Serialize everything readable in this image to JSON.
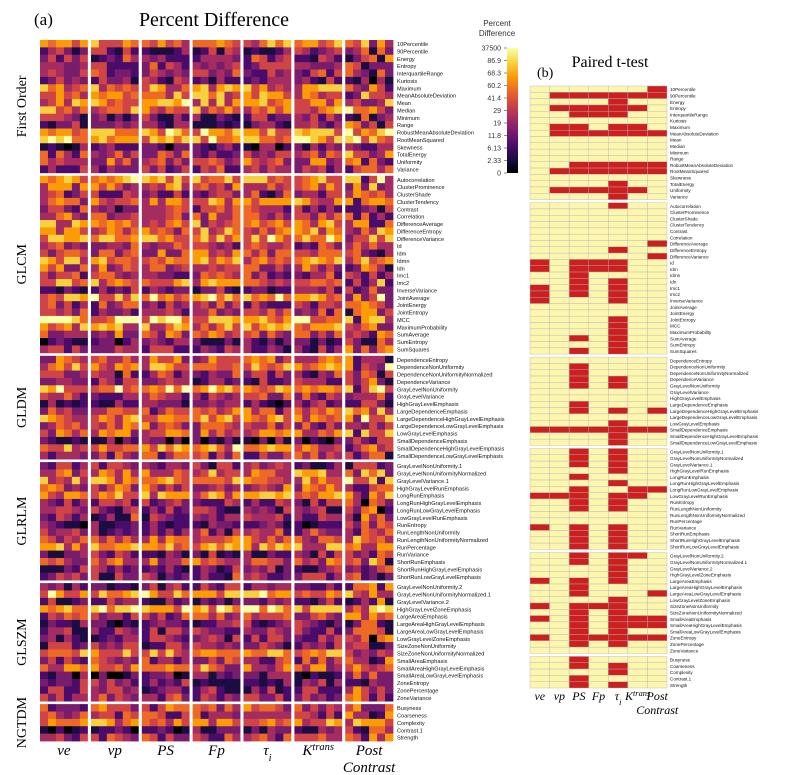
{
  "panel_a": {
    "label": "(a)",
    "title": "Percent Difference"
  },
  "panel_b": {
    "label": "(b)",
    "title": "Paired t-test"
  },
  "colorbar": {
    "title_line1": "Percent",
    "title_line2": "Difference",
    "ticks": [
      "37500",
      "86.9",
      "68.3",
      "60.2",
      "41.4",
      "29",
      "19",
      "11.8",
      "6.13",
      "2.33",
      "0"
    ]
  },
  "columns": [
    {
      "main": "ve",
      "sub": "",
      "sup": "",
      "extra": "",
      "italic": true
    },
    {
      "main": "vp",
      "sub": "",
      "sup": "",
      "extra": "",
      "italic": true
    },
    {
      "main": "PS",
      "sub": "",
      "sup": "",
      "extra": "",
      "italic": true
    },
    {
      "main": "Fp",
      "sub": "",
      "sup": "",
      "extra": "",
      "italic": true
    },
    {
      "main": "τ",
      "sub": "i",
      "sup": "",
      "extra": "",
      "italic": true
    },
    {
      "main": "K",
      "sub": "",
      "sup": "trans",
      "extra": "",
      "italic": true
    },
    {
      "main": "Post",
      "sub": "",
      "sup": "",
      "extra": "Contrast",
      "italic": true
    }
  ],
  "colors": {
    "significant": "#cc1f1f",
    "not_significant": "#fdf6ae",
    "grid_line": "#b5b5b5",
    "colormap": [
      "#000004",
      "#1b0c41",
      "#4a0c6b",
      "#781c6d",
      "#a52c60",
      "#cf4446",
      "#ed6925",
      "#fb9b06",
      "#f7d13d",
      "#fcffa4"
    ]
  },
  "chart_data": [
    {
      "type": "heatmap",
      "title": "Percent Difference",
      "colorbar_label": "Percent Difference",
      "colorbar_ticks": [
        37500,
        86.9,
        68.3,
        60.2,
        41.4,
        29,
        19,
        11.8,
        6.13,
        2.33,
        0
      ],
      "columns": [
        "ve",
        "vp",
        "PS",
        "Fp",
        "τi",
        "Ktrans",
        "Post Contrast"
      ],
      "groups": [
        {
          "name": "First Order",
          "features": [
            "10Percentile",
            "90Percentile",
            "Energy",
            "Entropy",
            "InterquartileRange",
            "Kurtosis",
            "Maximum",
            "MeanAbsoluteDeviation",
            "Mean",
            "Median",
            "Minimum",
            "Range",
            "RobustMeanAbsoluteDeviation",
            "RootMeanSquared",
            "Skewness",
            "TotalEnergy",
            "Uniformity",
            "Variance"
          ]
        },
        {
          "name": "GLCM",
          "features": [
            "Autocorrelation",
            "ClusterProminence",
            "ClusterShade",
            "ClusterTendency",
            "Contrast",
            "Correlation",
            "DifferenceAverage",
            "DifferenceEntropy",
            "DifferenceVariance",
            "Id",
            "Idm",
            "Idmn",
            "Idn",
            "Imc1",
            "Imc2",
            "InverseVariance",
            "JointAverage",
            "JointEnergy",
            "JointEntropy",
            "MCC",
            "MaximumProbability",
            "SumAverage",
            "SumEntropy",
            "SumSquares"
          ]
        },
        {
          "name": "GLDM",
          "features": [
            "DependenceEntropy",
            "DependenceNonUniformity",
            "DependenceNonUniformityNormalized",
            "DependenceVariance",
            "GrayLevelNonUniformity",
            "GrayLevelVariance",
            "HighGrayLevelEmphasis",
            "LargeDependenceEmphasis",
            "LargeDependenceHighGrayLevelEmphasis",
            "LargeDependenceLowGrayLevelEmphasis",
            "LowGrayLevelEmphasis",
            "SmallDependenceEmphasis",
            "SmallDependenceHighGrayLevelEmphasis",
            "SmallDependenceLowGrayLevelEmphasis"
          ]
        },
        {
          "name": "GLRLM",
          "features": [
            "GrayLevelNonUniformity.1",
            "GrayLevelNonUniformityNormalized",
            "GrayLevelVariance.1",
            "HighGrayLevelRunEmphasis",
            "LongRunEmphasis",
            "LongRunHighGrayLevelEmphasis",
            "LongRunLowGrayLevelEmphasis",
            "LowGrayLevelRunEmphasis",
            "RunEntropy",
            "RunLengthNonUniformity",
            "RunLengthNonUniformityNormalized",
            "RunPercentage",
            "RunVariance",
            "ShortRunEmphasis",
            "ShortRunHighGrayLevelEmphasis",
            "ShortRunLowGrayLevelEmphasis"
          ]
        },
        {
          "name": "GLSZM",
          "features": [
            "GrayLevelNonUniformity.2",
            "GrayLevelNonUniformityNormalized.1",
            "GrayLevelVariance.2",
            "HighGrayLevelZoneEmphasis",
            "LargeAreaEmphasis",
            "LargeAreaHighGrayLevelEmphasis",
            "LargeAreaLowGrayLevelEmphasis",
            "LowGrayLevelZoneEmphasis",
            "SizeZoneNonUniformity",
            "SizeZoneNonUniformityNormalized",
            "SmallAreaEmphasis",
            "SmallAreaHighGrayLevelEmphasis",
            "SmallAreaLowGrayLevelEmphasis",
            "ZoneEntropy",
            "ZonePercentage",
            "ZoneVariance"
          ]
        },
        {
          "name": "NGTDM",
          "features": [
            "Busyness",
            "Coarseness",
            "Complexity",
            "Contrast.1",
            "Strength"
          ]
        }
      ]
    },
    {
      "type": "heatmap",
      "title": "Paired t-test",
      "columns": [
        "ve",
        "vp",
        "PS",
        "Fp",
        "τi",
        "Ktrans",
        "Post Contrast"
      ],
      "significance": {
        "First Order": [
          [
            0,
            0,
            0,
            0,
            0,
            0,
            1
          ],
          [
            0,
            1,
            1,
            1,
            1,
            1,
            1
          ],
          [
            0,
            0,
            0,
            0,
            1,
            0,
            0
          ],
          [
            0,
            1,
            1,
            1,
            1,
            1,
            0
          ],
          [
            0,
            0,
            1,
            1,
            1,
            0,
            0
          ],
          [
            0,
            0,
            0,
            0,
            0,
            0,
            0
          ],
          [
            0,
            1,
            1,
            0,
            1,
            1,
            0
          ],
          [
            0,
            1,
            1,
            1,
            1,
            1,
            1
          ],
          [
            0,
            0,
            0,
            0,
            0,
            0,
            0
          ],
          [
            0,
            0,
            0,
            0,
            0,
            0,
            0
          ],
          [
            0,
            0,
            0,
            0,
            0,
            0,
            0
          ],
          [
            0,
            0,
            0,
            0,
            0,
            0,
            0
          ],
          [
            0,
            0,
            1,
            1,
            1,
            1,
            1
          ],
          [
            0,
            1,
            1,
            1,
            1,
            1,
            1
          ],
          [
            0,
            0,
            0,
            0,
            0,
            0,
            0
          ],
          [
            0,
            0,
            0,
            0,
            1,
            0,
            0
          ],
          [
            0,
            1,
            1,
            1,
            1,
            1,
            0
          ],
          [
            0,
            0,
            0,
            0,
            1,
            0,
            0
          ]
        ],
        "GLCM": [
          [
            0,
            0,
            0,
            0,
            1,
            0,
            0
          ],
          [
            0,
            0,
            0,
            0,
            0,
            0,
            0
          ],
          [
            0,
            0,
            0,
            0,
            0,
            0,
            0
          ],
          [
            0,
            0,
            0,
            0,
            0,
            0,
            0
          ],
          [
            0,
            0,
            0,
            0,
            0,
            0,
            0
          ],
          [
            0,
            0,
            0,
            0,
            0,
            0,
            0
          ],
          [
            0,
            0,
            0,
            0,
            0,
            0,
            1
          ],
          [
            0,
            0,
            0,
            0,
            1,
            0,
            0
          ],
          [
            0,
            0,
            0,
            0,
            0,
            0,
            1
          ],
          [
            1,
            0,
            1,
            1,
            1,
            0,
            0
          ],
          [
            1,
            0,
            1,
            1,
            1,
            0,
            0
          ],
          [
            0,
            0,
            1,
            0,
            0,
            0,
            0
          ],
          [
            0,
            0,
            1,
            0,
            1,
            0,
            0
          ],
          [
            1,
            0,
            1,
            0,
            1,
            0,
            0
          ],
          [
            1,
            0,
            1,
            0,
            1,
            0,
            0
          ],
          [
            1,
            0,
            0,
            0,
            1,
            0,
            0
          ],
          [
            0,
            0,
            0,
            0,
            0,
            0,
            0
          ],
          [
            0,
            0,
            0,
            0,
            0,
            0,
            0
          ],
          [
            0,
            0,
            0,
            0,
            1,
            0,
            0
          ],
          [
            0,
            0,
            0,
            0,
            1,
            0,
            0
          ],
          [
            0,
            0,
            0,
            0,
            1,
            0,
            0
          ],
          [
            0,
            0,
            1,
            0,
            1,
            0,
            0
          ],
          [
            0,
            0,
            0,
            0,
            1,
            0,
            0
          ],
          [
            0,
            0,
            1,
            0,
            1,
            0,
            0
          ]
        ],
        "GLDM": [
          [
            0,
            0,
            0,
            0,
            0,
            0,
            0
          ],
          [
            0,
            0,
            1,
            0,
            0,
            0,
            0
          ],
          [
            0,
            0,
            1,
            0,
            0,
            0,
            0
          ],
          [
            0,
            0,
            1,
            0,
            1,
            0,
            0
          ],
          [
            0,
            0,
            1,
            0,
            1,
            0,
            0
          ],
          [
            0,
            0,
            0,
            0,
            0,
            0,
            0
          ],
          [
            0,
            0,
            0,
            0,
            0,
            0,
            0
          ],
          [
            0,
            0,
            1,
            0,
            0,
            0,
            0
          ],
          [
            0,
            0,
            1,
            0,
            1,
            0,
            1
          ],
          [
            0,
            0,
            0,
            0,
            0,
            0,
            0
          ],
          [
            0,
            0,
            0,
            0,
            1,
            0,
            0
          ],
          [
            1,
            1,
            1,
            1,
            1,
            1,
            1
          ],
          [
            0,
            0,
            0,
            0,
            1,
            0,
            0
          ],
          [
            0,
            0,
            0,
            0,
            1,
            0,
            0
          ]
        ],
        "GLRLM": [
          [
            0,
            0,
            1,
            0,
            1,
            0,
            0
          ],
          [
            0,
            0,
            1,
            0,
            1,
            0,
            0
          ],
          [
            0,
            0,
            1,
            0,
            1,
            0,
            0
          ],
          [
            0,
            0,
            0,
            0,
            1,
            0,
            0
          ],
          [
            0,
            0,
            1,
            0,
            0,
            0,
            0
          ],
          [
            0,
            0,
            0,
            0,
            1,
            0,
            0
          ],
          [
            0,
            0,
            1,
            0,
            0,
            1,
            1
          ],
          [
            1,
            1,
            1,
            0,
            1,
            1,
            0
          ],
          [
            0,
            0,
            1,
            0,
            1,
            0,
            0
          ],
          [
            0,
            0,
            1,
            0,
            1,
            0,
            0
          ],
          [
            0,
            0,
            0,
            0,
            0,
            0,
            0
          ],
          [
            0,
            0,
            0,
            0,
            0,
            0,
            0
          ],
          [
            1,
            0,
            1,
            0,
            1,
            0,
            0
          ],
          [
            0,
            0,
            1,
            0,
            1,
            0,
            0
          ],
          [
            0,
            0,
            1,
            0,
            1,
            0,
            0
          ],
          [
            0,
            0,
            1,
            0,
            1,
            0,
            0
          ]
        ],
        "GLSZM": [
          [
            0,
            0,
            1,
            0,
            1,
            1,
            0
          ],
          [
            0,
            0,
            1,
            0,
            1,
            0,
            0
          ],
          [
            0,
            0,
            0,
            0,
            1,
            0,
            0
          ],
          [
            0,
            0,
            0,
            0,
            1,
            0,
            0
          ],
          [
            1,
            0,
            1,
            0,
            1,
            0,
            0
          ],
          [
            0,
            0,
            1,
            0,
            0,
            0,
            0
          ],
          [
            0,
            0,
            1,
            0,
            0,
            0,
            1
          ],
          [
            0,
            0,
            0,
            0,
            1,
            0,
            0
          ],
          [
            1,
            0,
            1,
            1,
            1,
            0,
            0
          ],
          [
            0,
            0,
            1,
            0,
            1,
            0,
            0
          ],
          [
            1,
            0,
            1,
            0,
            1,
            1,
            1
          ],
          [
            0,
            0,
            1,
            0,
            1,
            1,
            1
          ],
          [
            0,
            0,
            1,
            0,
            1,
            0,
            0
          ],
          [
            1,
            0,
            1,
            1,
            1,
            1,
            1
          ],
          [
            0,
            0,
            1,
            0,
            1,
            0,
            0
          ],
          [
            0,
            0,
            0,
            0,
            0,
            0,
            0
          ]
        ],
        "NGTDM": [
          [
            0,
            0,
            1,
            0,
            0,
            0,
            0
          ],
          [
            0,
            0,
            1,
            0,
            1,
            0,
            0
          ],
          [
            0,
            0,
            0,
            0,
            1,
            0,
            0
          ],
          [
            0,
            0,
            1,
            0,
            0,
            0,
            0
          ],
          [
            0,
            0,
            1,
            0,
            1,
            0,
            0
          ]
        ]
      }
    }
  ]
}
